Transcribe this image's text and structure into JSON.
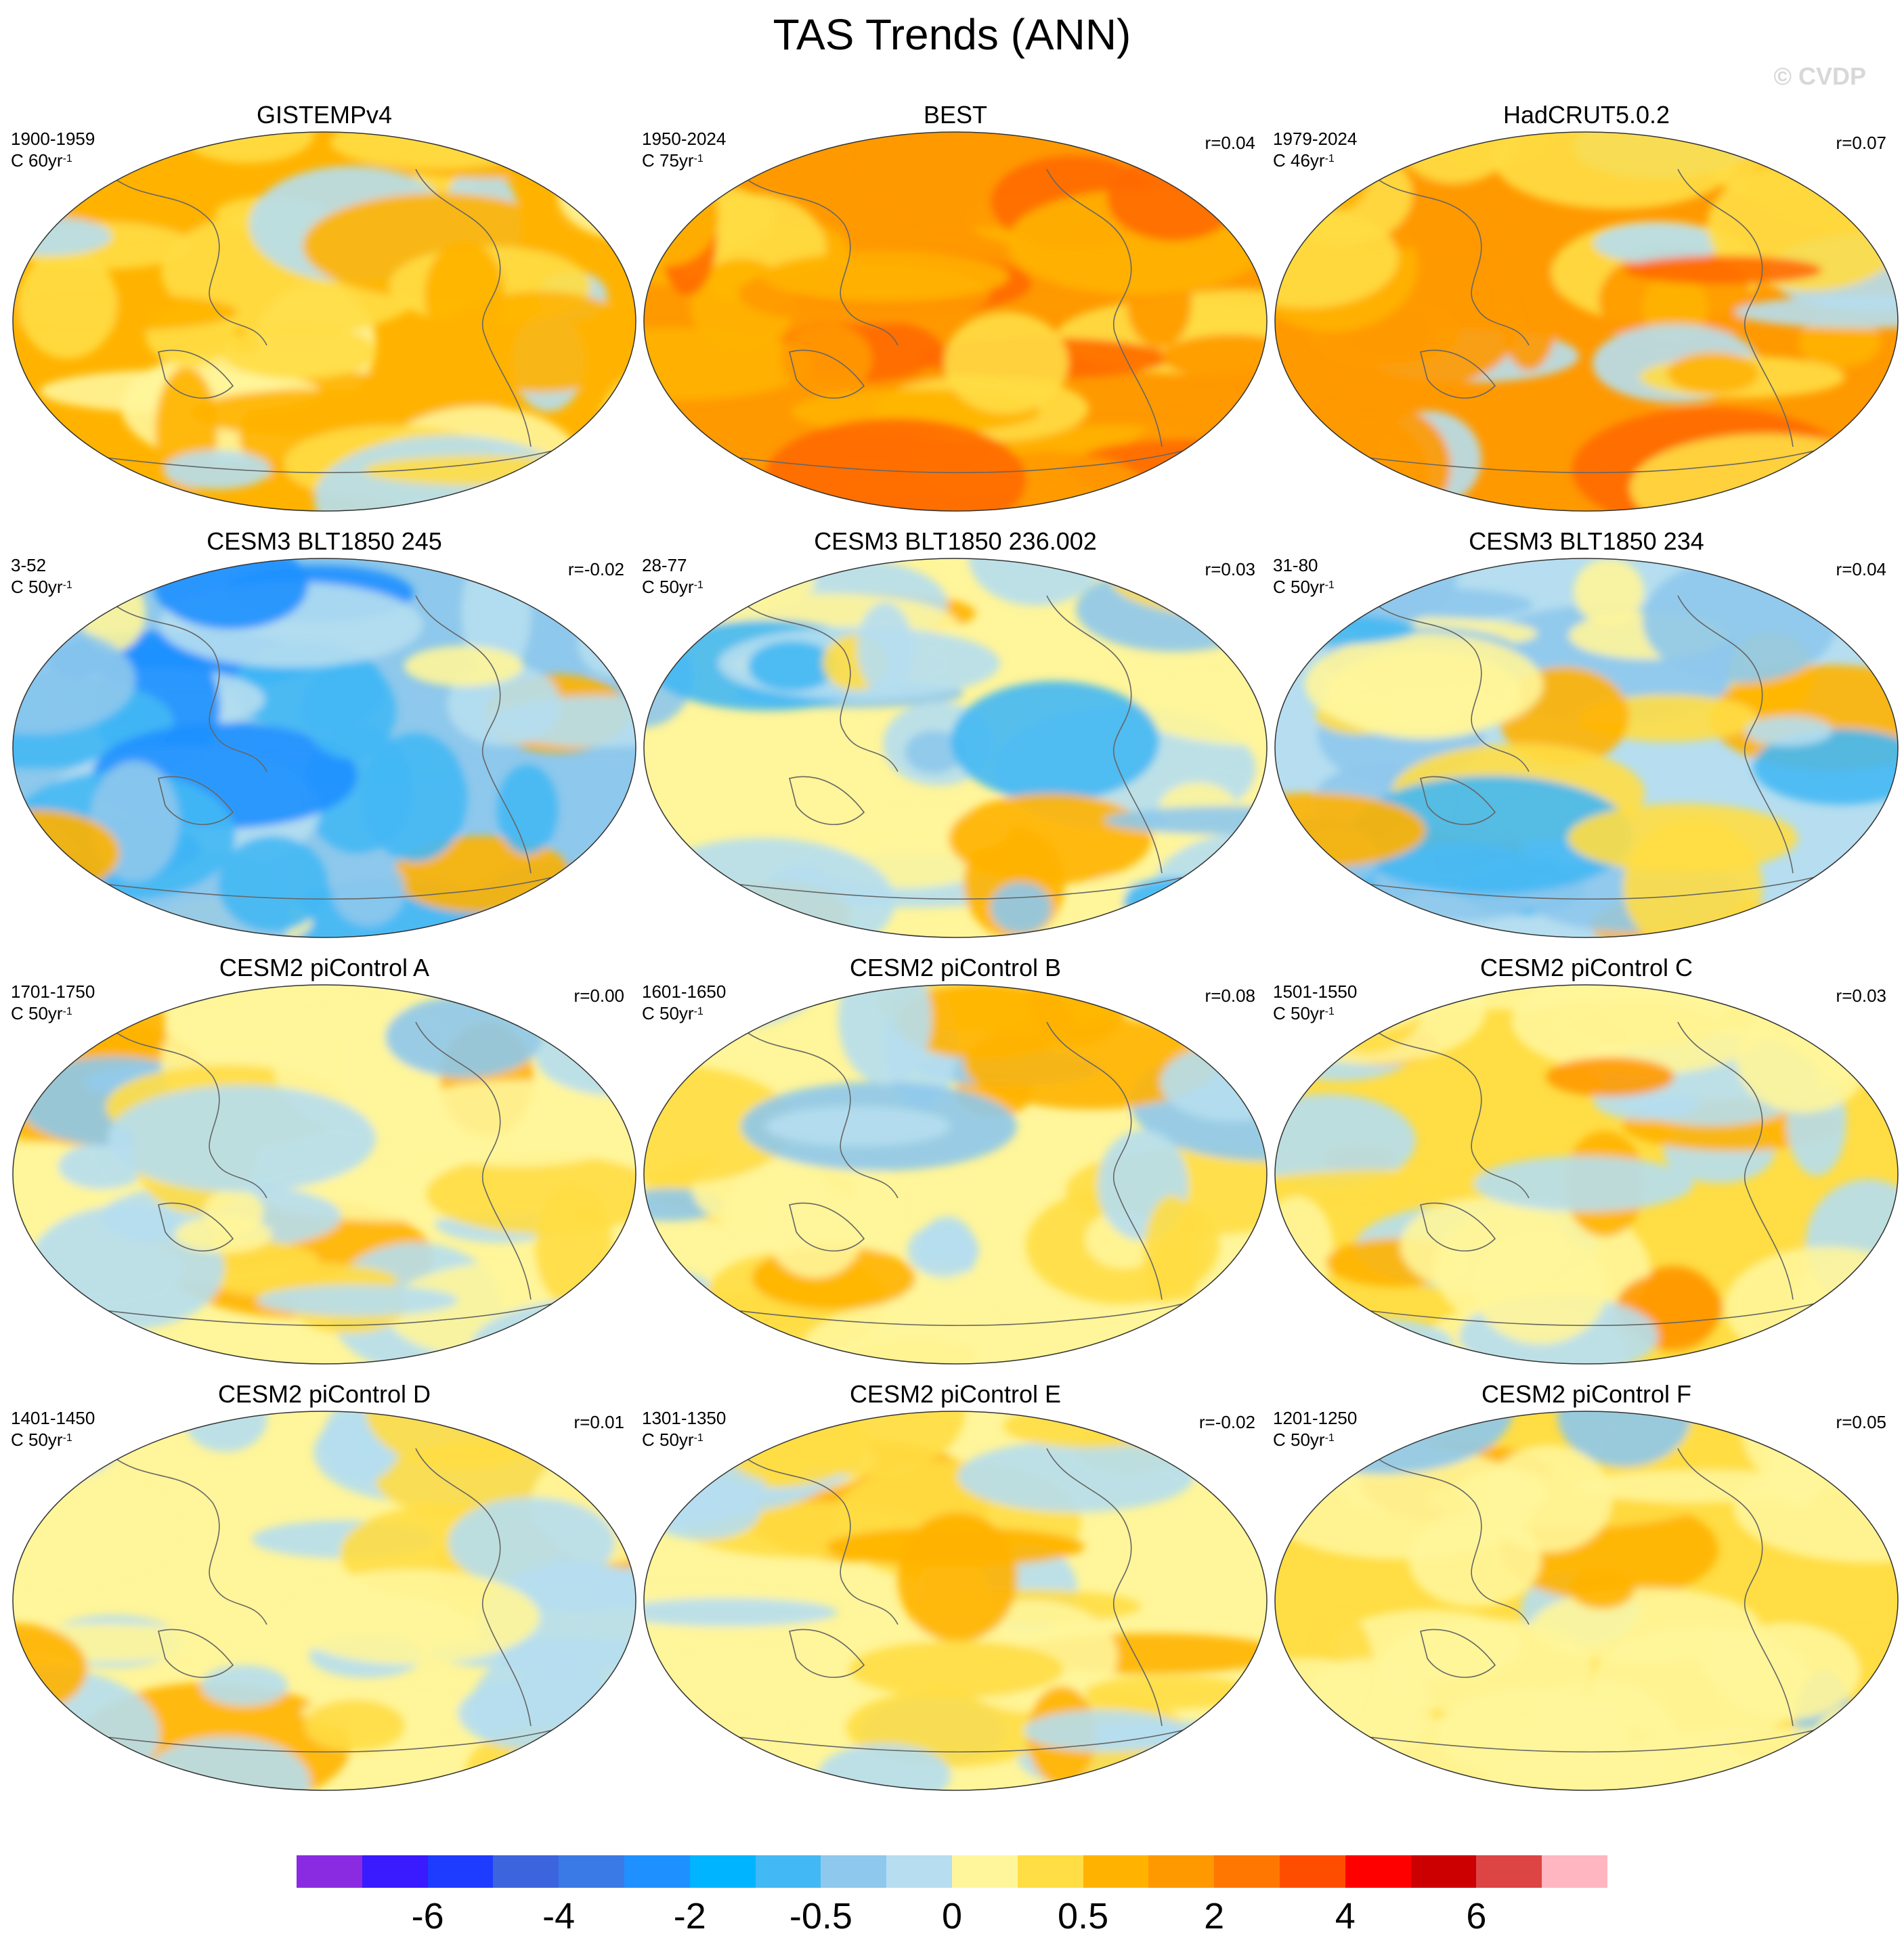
{
  "title": "TAS Trends (ANN)",
  "copyright": "© CVDP",
  "panels": [
    {
      "title": "GISTEMPv4",
      "period": "1900-1959",
      "units_base": "C 60yr",
      "units_exp": "-1",
      "corr": "",
      "palette": [
        "#ffb300",
        "#ffdd44",
        "#fff59a",
        "#ffb300",
        "#ffdd44",
        "#ffb300",
        "#b6def0",
        "#ffdd44"
      ]
    },
    {
      "title": "BEST",
      "period": "1950-2024",
      "units_base": "C 75yr",
      "units_exp": "-1",
      "corr": "r=0.04",
      "palette": [
        "#ff9900",
        "#ffb300",
        "#ff9900",
        "#ffdd44",
        "#ff9900",
        "#ff6a00",
        "#ffb300",
        "#ff9900"
      ]
    },
    {
      "title": "HadCRUT5.0.2",
      "period": "1979-2024",
      "units_base": "C 46yr",
      "units_exp": "-1",
      "corr": "r=0.07",
      "palette": [
        "#ff9900",
        "#ffb300",
        "#ffdd44",
        "#ff9900",
        "#b6def0",
        "#ffb300",
        "#ff6a00",
        "#ffdd44"
      ]
    },
    {
      "title": "CESM3 BLT1850 245",
      "period": "3-52",
      "units_base": "C 50yr",
      "units_exp": "-1",
      "corr": "r=-0.02",
      "palette": [
        "#8ec8ec",
        "#42b8f4",
        "#b6def0",
        "#ffb300",
        "#42b8f4",
        "#fff59a",
        "#8ec8ec",
        "#1e90ff"
      ]
    },
    {
      "title": "CESM3 BLT1850 236.002",
      "period": "28-77",
      "units_base": "C 50yr",
      "units_exp": "-1",
      "corr": "r=0.03",
      "palette": [
        "#fff59a",
        "#b6def0",
        "#ffdd44",
        "#8ec8ec",
        "#ffb300",
        "#fff59a",
        "#42b8f4",
        "#b6def0"
      ]
    },
    {
      "title": "CESM3 BLT1850 234",
      "period": "31-80",
      "units_base": "C 50yr",
      "units_exp": "-1",
      "corr": "r=0.04",
      "palette": [
        "#b6def0",
        "#fff59a",
        "#8ec8ec",
        "#ffdd44",
        "#42b8f4",
        "#b6def0",
        "#ffb300",
        "#8ec8ec"
      ]
    },
    {
      "title": "CESM2 piControl A",
      "period": "1701-1750",
      "units_base": "C 50yr",
      "units_exp": "-1",
      "corr": "r=0.00",
      "palette": [
        "#fff59a",
        "#b6def0",
        "#ffdd44",
        "#fff59a",
        "#b6def0",
        "#ffb300",
        "#fff59a",
        "#8ec8ec"
      ]
    },
    {
      "title": "CESM2 piControl B",
      "period": "1601-1650",
      "units_base": "C 50yr",
      "units_exp": "-1",
      "corr": "r=0.08",
      "palette": [
        "#fff59a",
        "#8ec8ec",
        "#ffdd44",
        "#b6def0",
        "#ffb300",
        "#fff59a",
        "#ffdd44",
        "#b6def0"
      ]
    },
    {
      "title": "CESM2 piControl C",
      "period": "1501-1550",
      "units_base": "C 50yr",
      "units_exp": "-1",
      "corr": "r=0.03",
      "palette": [
        "#ffdd44",
        "#b6def0",
        "#ffb300",
        "#fff59a",
        "#ff9900",
        "#b6def0",
        "#fff59a",
        "#ffdd44"
      ]
    },
    {
      "title": "CESM2 piControl D",
      "period": "1401-1450",
      "units_base": "C 50yr",
      "units_exp": "-1",
      "corr": "r=0.01",
      "palette": [
        "#fff59a",
        "#b6def0",
        "#ffdd44",
        "#fff59a",
        "#b6def0",
        "#ffb300",
        "#fff59a",
        "#b6def0"
      ]
    },
    {
      "title": "CESM2 piControl E",
      "period": "1301-1350",
      "units_base": "C 50yr",
      "units_exp": "-1",
      "corr": "r=-0.02",
      "palette": [
        "#fff59a",
        "#ffdd44",
        "#b6def0",
        "#fff59a",
        "#ffb300",
        "#b6def0",
        "#fff59a",
        "#ffdd44"
      ]
    },
    {
      "title": "CESM2 piControl F",
      "period": "1201-1250",
      "units_base": "C 50yr",
      "units_exp": "-1",
      "corr": "r=0.05",
      "palette": [
        "#ffdd44",
        "#fff59a",
        "#b6def0",
        "#ffb300",
        "#fff59a",
        "#8ec8ec",
        "#ffdd44",
        "#fff59a"
      ]
    }
  ],
  "colorbar": {
    "colors": [
      "#8a2be2",
      "#3a1aff",
      "#1e3cff",
      "#3c64dc",
      "#3a7ae6",
      "#1e90ff",
      "#00b4ff",
      "#42b8f4",
      "#8ec8ec",
      "#b6def0",
      "#fff59a",
      "#ffdd44",
      "#ffb300",
      "#ff9900",
      "#ff7700",
      "#ff4d00",
      "#ff0000",
      "#cc0000",
      "#dd4444",
      "#ffb6c1"
    ],
    "labels": [
      {
        "text": "-6",
        "boundary": 2
      },
      {
        "text": "-4",
        "boundary": 4
      },
      {
        "text": "-2",
        "boundary": 6
      },
      {
        "text": "-0.5",
        "boundary": 8
      },
      {
        "text": "0",
        "boundary": 10
      },
      {
        "text": "0.5",
        "boundary": 12
      },
      {
        "text": "2",
        "boundary": 14
      },
      {
        "text": "4",
        "boundary": 16
      },
      {
        "text": "6",
        "boundary": 18
      }
    ]
  }
}
